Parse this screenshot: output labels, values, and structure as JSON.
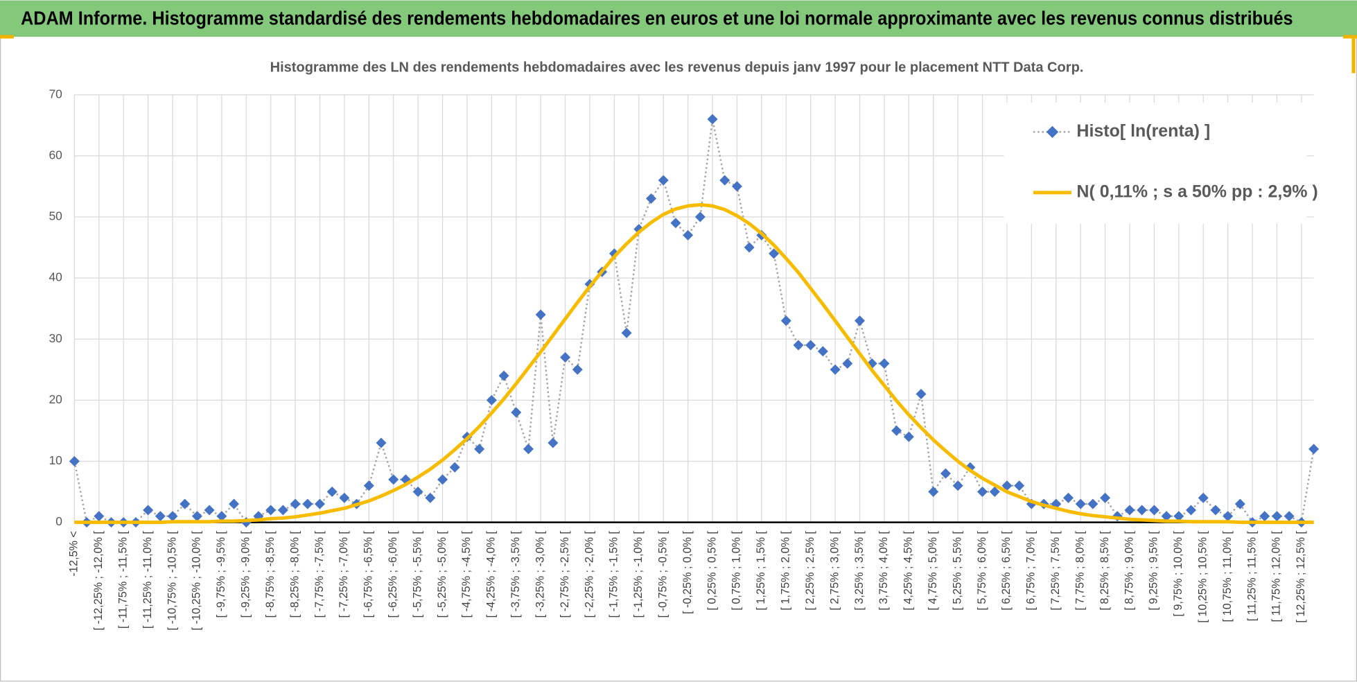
{
  "header": {
    "title": "ADAM Informe. Histogramme standardisé des rendements hebdomadaires en euros et une loi normale approximante avec les revenus connus distribués"
  },
  "chart_data": {
    "type": "line",
    "title": "Histogramme des LN des rendements hebdomadaires avec les revenus depuis janv 1997 pour le placement NTT Data Corp.",
    "categories": [
      "-12,5% <",
      null,
      "[ -12,25% ; -12,0% [",
      null,
      "[ -11,75% ; -11,5% [",
      null,
      "[ -11,25% ; -11,0% [",
      null,
      "[ -10,75% ; -10,5% [",
      null,
      "[ -10,25% ; -10,0% [",
      null,
      "[ -9,75% ; -9,5% [",
      null,
      "[ -9,25% ; -9,0% [",
      null,
      "[ -8,75% ; -8,5% [",
      null,
      "[ -8,25% ; -8,0% [",
      null,
      "[ -7,75% ; -7,5% [",
      null,
      "[ -7,25% ; -7,0% [",
      null,
      "[ -6,75% ; -6,5% [",
      null,
      "[ -6,25% ; -6,0% [",
      null,
      "[ -5,75% ; -5,5% [",
      null,
      "[ -5,25% ; -5,0% [",
      null,
      "[ -4,75% ; -4,5% [",
      null,
      "[ -4,25% ; -4,0% [",
      null,
      "[ -3,75% ; -3,5% [",
      null,
      "[ -3,25% ; -3,0% [",
      null,
      "[ -2,75% ; -2,5% [",
      null,
      "[ -2,25% ; -2,0% [",
      null,
      "[ -1,75% ; -1,5% [",
      null,
      "[ -1,25% ; -1,0% [",
      null,
      "[ -0,75% ; -0,5% [",
      null,
      "[ -0,25% ; 0,0% [",
      null,
      "[ 0,25% ; 0,5% [",
      null,
      "[ 0,75% ; 1,0% [",
      null,
      "[ 1,25% ; 1,5% [",
      null,
      "[ 1,75% ; 2,0% [",
      null,
      "[ 2,25% ; 2,5% [",
      null,
      "[ 2,75% ; 3,0% [",
      null,
      "[ 3,25% ; 3,5% [",
      null,
      "[ 3,75% ; 4,0% [",
      null,
      "[ 4,25% ; 4,5% [",
      null,
      "[ 4,75% ; 5,0% [",
      null,
      "[ 5,25% ; 5,5% [",
      null,
      "[ 5,75% ; 6,0% [",
      null,
      "[ 6,25% ; 6,5% [",
      null,
      "[ 6,75% ; 7,0% [",
      null,
      "[ 7,25% ; 7,5% [",
      null,
      "[ 7,75% ; 8,0% [",
      null,
      "[ 8,25% ; 8,5% [",
      null,
      "[ 8,75% ; 9,0% [",
      null,
      "[ 9,25% ; 9,5% [",
      null,
      "[ 9,75% ; 10,0% [",
      null,
      "[ 10,25% ; 10,5% [",
      null,
      "[ 10,75% ; 11,0% [",
      null,
      "[ 11,25% ; 11,5% [",
      null,
      "[ 11,75% ; 12,0% [",
      null,
      "[ 12,25% ; 12,5% [",
      null
    ],
    "series": [
      {
        "name": "Histo[ ln(renta) ]",
        "color": "#4472c4",
        "line_color": "#a6a6a6",
        "marker": "diamond",
        "values": [
          10,
          0,
          1,
          0,
          0,
          0,
          2,
          1,
          1,
          3,
          1,
          2,
          1,
          3,
          0,
          1,
          2,
          2,
          3,
          3,
          3,
          5,
          4,
          3,
          6,
          13,
          7,
          7,
          5,
          4,
          7,
          9,
          14,
          12,
          20,
          24,
          18,
          12,
          34,
          13,
          27,
          25,
          39,
          41,
          44,
          31,
          48,
          53,
          56,
          49,
          47,
          50,
          66,
          56,
          55,
          45,
          47,
          44,
          33,
          29,
          29,
          28,
          25,
          26,
          33,
          26,
          26,
          15,
          14,
          21,
          5,
          8,
          6,
          9,
          5,
          5,
          6,
          6,
          3,
          3,
          3,
          4,
          3,
          3,
          4,
          1,
          2,
          2,
          2,
          1,
          1,
          2,
          4,
          2,
          1,
          3,
          0,
          1,
          1,
          1,
          0,
          12
        ]
      },
      {
        "name": "N( 0,11% ; s a 50% pp : 2,9% )",
        "color": "#f7bc00",
        "values": [
          0.0,
          0.0,
          0.0,
          0.0,
          0.0,
          0.0,
          0.0,
          0.0,
          0.1,
          0.1,
          0.1,
          0.1,
          0.2,
          0.2,
          0.3,
          0.4,
          0.6,
          0.7,
          0.9,
          1.2,
          1.5,
          1.9,
          2.3,
          2.9,
          3.5,
          4.3,
          5.2,
          6.2,
          7.4,
          8.7,
          10.2,
          11.9,
          13.7,
          15.7,
          17.9,
          20.2,
          22.7,
          25.3,
          27.9,
          30.6,
          33.3,
          36.0,
          38.6,
          41.1,
          43.5,
          45.6,
          47.5,
          49.1,
          50.4,
          51.3,
          51.8,
          52.0,
          51.8,
          51.2,
          50.2,
          48.9,
          47.3,
          45.4,
          43.2,
          40.9,
          38.3,
          35.7,
          33.0,
          30.3,
          27.6,
          24.9,
          22.4,
          19.9,
          17.6,
          15.5,
          13.5,
          11.7,
          10.0,
          8.5,
          7.2,
          6.1,
          5.0,
          4.2,
          3.4,
          2.8,
          2.3,
          1.8,
          1.4,
          1.1,
          0.9,
          0.7,
          0.5,
          0.4,
          0.3,
          0.2,
          0.2,
          0.1,
          0.1,
          0.1,
          0.1,
          0.0,
          0.0,
          0.0,
          0.0,
          0.0,
          0.0,
          0.0
        ]
      }
    ],
    "ylim": [
      0,
      70
    ],
    "yticks": [
      0,
      10,
      20,
      30,
      40,
      50,
      60,
      70
    ],
    "grid": true,
    "legend": "upper right"
  }
}
